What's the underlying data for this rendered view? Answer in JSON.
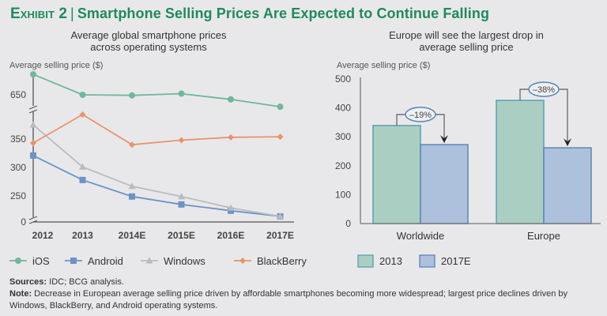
{
  "header": {
    "exhibit_label": "Exhibit 2",
    "separator": "|",
    "title": "Smartphone Selling Prices Are Expected to Continue Falling"
  },
  "chart_data": [
    {
      "type": "line",
      "title": "Average global smartphone prices across operating systems",
      "title_lines": [
        "Average global smartphone prices",
        "across operating systems"
      ],
      "ylabel": "Average selling price ($)",
      "xlabel": "",
      "x": [
        "2012",
        "2013",
        "2014E",
        "2015E",
        "2016E",
        "2017E"
      ],
      "yticks": [
        "650",
        "350",
        "300",
        "250",
        "0"
      ],
      "y_axis_break": "broken axis between 0 and ~200 and between ~400 and ~630",
      "grid": false,
      "legend_position": "bottom",
      "series": [
        {
          "name": "iOS",
          "marker": "circle",
          "color": "#6fb89b",
          "values": [
            686,
            650,
            649,
            652,
            642,
            629
          ]
        },
        {
          "name": "Android",
          "marker": "square",
          "color": "#6b93c6",
          "values": [
            321,
            278,
            249,
            235,
            224,
            214
          ]
        },
        {
          "name": "Windows",
          "marker": "triangle",
          "color": "#b9bcbf",
          "values": [
            375,
            301,
            267,
            249,
            229,
            214
          ]
        },
        {
          "name": "BlackBerry",
          "marker": "diamond",
          "color": "#e8946b",
          "values": [
            343,
            393,
            340,
            348,
            353,
            354
          ]
        }
      ]
    },
    {
      "type": "bar",
      "title": "Europe will see the largest drop in average selling price",
      "title_lines": [
        "Europe will see the largest drop in",
        "average selling price"
      ],
      "ylabel": "Average selling price ($)",
      "xlabel": "",
      "categories": [
        "Worldwide",
        "Europe"
      ],
      "yticks": [
        "500",
        "400",
        "300",
        "200",
        "100",
        "0"
      ],
      "ylim": [
        0,
        500
      ],
      "grid": false,
      "legend_position": "bottom",
      "series": [
        {
          "name": "2013",
          "color": "#aacfc2",
          "values": [
            339,
            426
          ]
        },
        {
          "name": "2017E",
          "color": "#adc0dc",
          "values": [
            273,
            262
          ]
        }
      ],
      "annotations": [
        "–19%",
        "–38%"
      ]
    }
  ],
  "footer": {
    "sources_label": "Sources:",
    "sources_text": " IDC; BCG analysis.",
    "note_label": "Note:",
    "note_text": " Decrease in European average selling price driven by affordable smartphones becoming more widespread; largest price declines driven by Windows, BlackBerry, and Android operating systems."
  }
}
